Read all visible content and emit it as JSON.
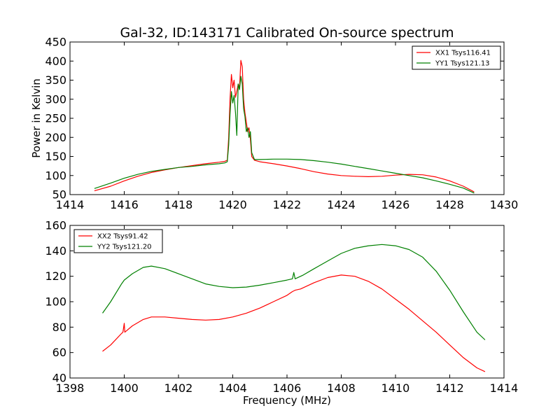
{
  "title": "Gal-32, ID:143171 Calibrated On-source spectrum",
  "ylabel": "Power in Kelvin",
  "xlabel": "Frequency (MHz)",
  "colors": {
    "xx": "#ff0000",
    "yy": "#008000",
    "axes": "#000000",
    "background": "#ffffff"
  },
  "chart_data": [
    {
      "type": "line",
      "xlim": [
        1414,
        1430
      ],
      "ylim": [
        50,
        450
      ],
      "xticks": [
        1414,
        1416,
        1418,
        1420,
        1422,
        1424,
        1426,
        1428,
        1430
      ],
      "yticks": [
        50,
        100,
        150,
        200,
        250,
        300,
        350,
        400,
        450
      ],
      "legend_position": "top-right",
      "series": [
        {
          "name": "XX1 Tsys116.41",
          "color": "#ff0000",
          "points": [
            [
              1414.9,
              60
            ],
            [
              1415.5,
              72
            ],
            [
              1416,
              86
            ],
            [
              1416.5,
              98
            ],
            [
              1417,
              108
            ],
            [
              1417.5,
              115
            ],
            [
              1418,
              121
            ],
            [
              1418.5,
              126
            ],
            [
              1419,
              131
            ],
            [
              1419.5,
              135
            ],
            [
              1419.7,
              137
            ],
            [
              1419.8,
              140
            ],
            [
              1419.85,
              200
            ],
            [
              1419.9,
              300
            ],
            [
              1419.95,
              365
            ],
            [
              1420.0,
              330
            ],
            [
              1420.05,
              350
            ],
            [
              1420.1,
              305
            ],
            [
              1420.15,
              320
            ],
            [
              1420.2,
              340
            ],
            [
              1420.25,
              330
            ],
            [
              1420.3,
              402
            ],
            [
              1420.35,
              385
            ],
            [
              1420.4,
              300
            ],
            [
              1420.45,
              265
            ],
            [
              1420.5,
              240
            ],
            [
              1420.55,
              215
            ],
            [
              1420.6,
              225
            ],
            [
              1420.65,
              195
            ],
            [
              1420.7,
              150
            ],
            [
              1420.8,
              140
            ],
            [
              1421,
              136
            ],
            [
              1421.5,
              131
            ],
            [
              1422,
              125
            ],
            [
              1422.5,
              118
            ],
            [
              1423,
              110
            ],
            [
              1423.5,
              104
            ],
            [
              1424,
              100
            ],
            [
              1424.5,
              98
            ],
            [
              1425,
              97
            ],
            [
              1425.5,
              98
            ],
            [
              1426,
              101
            ],
            [
              1426.5,
              103
            ],
            [
              1427,
              102
            ],
            [
              1427.5,
              96
            ],
            [
              1428,
              86
            ],
            [
              1428.5,
              72
            ],
            [
              1428.9,
              57
            ]
          ]
        },
        {
          "name": "YY1 Tsys121.13",
          "color": "#008000",
          "points": [
            [
              1414.9,
              66
            ],
            [
              1415.5,
              80
            ],
            [
              1416,
              93
            ],
            [
              1416.5,
              103
            ],
            [
              1417,
              111
            ],
            [
              1417.5,
              116
            ],
            [
              1418,
              121
            ],
            [
              1418.5,
              124
            ],
            [
              1419,
              128
            ],
            [
              1419.5,
              131
            ],
            [
              1419.7,
              133
            ],
            [
              1419.8,
              136
            ],
            [
              1419.85,
              180
            ],
            [
              1419.9,
              260
            ],
            [
              1419.95,
              320
            ],
            [
              1420.0,
              290
            ],
            [
              1420.05,
              310
            ],
            [
              1420.1,
              265
            ],
            [
              1420.15,
              205
            ],
            [
              1420.2,
              340
            ],
            [
              1420.25,
              325
            ],
            [
              1420.3,
              360
            ],
            [
              1420.35,
              340
            ],
            [
              1420.4,
              275
            ],
            [
              1420.45,
              255
            ],
            [
              1420.5,
              215
            ],
            [
              1420.55,
              225
            ],
            [
              1420.6,
              200
            ],
            [
              1420.65,
              215
            ],
            [
              1420.7,
              160
            ],
            [
              1420.8,
              142
            ],
            [
              1421,
              142
            ],
            [
              1421.5,
              143
            ],
            [
              1422,
              143
            ],
            [
              1422.5,
              142
            ],
            [
              1423,
              139
            ],
            [
              1423.5,
              135
            ],
            [
              1424,
              130
            ],
            [
              1424.5,
              124
            ],
            [
              1425,
              118
            ],
            [
              1425.5,
              112
            ],
            [
              1426,
              106
            ],
            [
              1426.5,
              100
            ],
            [
              1427,
              94
            ],
            [
              1427.5,
              86
            ],
            [
              1428,
              77
            ],
            [
              1428.5,
              67
            ],
            [
              1428.9,
              54
            ]
          ]
        }
      ]
    },
    {
      "type": "line",
      "xlim": [
        1398,
        1414
      ],
      "ylim": [
        40,
        160
      ],
      "xticks": [
        1398,
        1400,
        1402,
        1404,
        1406,
        1408,
        1410,
        1412,
        1414
      ],
      "yticks": [
        40,
        60,
        80,
        100,
        120,
        140,
        160
      ],
      "legend_position": "top-left",
      "series": [
        {
          "name": "XX2 Tsys91.42",
          "color": "#ff0000",
          "points": [
            [
              1399.2,
              61
            ],
            [
              1399.5,
              66
            ],
            [
              1399.9,
              75
            ],
            [
              1399.95,
              76
            ],
            [
              1400.0,
              83
            ],
            [
              1400.02,
              76
            ],
            [
              1400.3,
              81
            ],
            [
              1400.7,
              86
            ],
            [
              1401,
              88
            ],
            [
              1401.5,
              88
            ],
            [
              1402,
              87
            ],
            [
              1402.5,
              86
            ],
            [
              1403,
              85.5
            ],
            [
              1403.5,
              86
            ],
            [
              1404,
              88
            ],
            [
              1404.5,
              91
            ],
            [
              1405,
              95
            ],
            [
              1405.5,
              100
            ],
            [
              1406,
              105
            ],
            [
              1406.2,
              108
            ],
            [
              1406.3,
              109
            ],
            [
              1406.5,
              110
            ],
            [
              1407,
              115
            ],
            [
              1407.5,
              119
            ],
            [
              1408,
              121
            ],
            [
              1408.5,
              120
            ],
            [
              1409,
              116
            ],
            [
              1409.5,
              110
            ],
            [
              1410,
              102
            ],
            [
              1410.5,
              94
            ],
            [
              1411,
              85
            ],
            [
              1411.5,
              76
            ],
            [
              1412,
              66
            ],
            [
              1412.5,
              56
            ],
            [
              1413,
              48
            ],
            [
              1413.3,
              45
            ]
          ]
        },
        {
          "name": "YY2 Tsys121.20",
          "color": "#008000",
          "points": [
            [
              1399.2,
              91
            ],
            [
              1399.5,
              100
            ],
            [
              1399.9,
              114
            ],
            [
              1400,
              117
            ],
            [
              1400.3,
              122
            ],
            [
              1400.7,
              127
            ],
            [
              1401,
              128
            ],
            [
              1401.5,
              126
            ],
            [
              1402,
              122
            ],
            [
              1402.5,
              118
            ],
            [
              1403,
              114
            ],
            [
              1403.5,
              112
            ],
            [
              1404,
              111
            ],
            [
              1404.5,
              111.5
            ],
            [
              1405,
              113
            ],
            [
              1405.5,
              115
            ],
            [
              1406,
              117
            ],
            [
              1406.2,
              118
            ],
            [
              1406.25,
              123
            ],
            [
              1406.3,
              118
            ],
            [
              1406.6,
              121
            ],
            [
              1407,
              126
            ],
            [
              1407.5,
              132
            ],
            [
              1408,
              138
            ],
            [
              1408.5,
              142
            ],
            [
              1409,
              144
            ],
            [
              1409.5,
              145
            ],
            [
              1410,
              144
            ],
            [
              1410.5,
              141
            ],
            [
              1411,
              135
            ],
            [
              1411.5,
              124
            ],
            [
              1412,
              109
            ],
            [
              1412.5,
              92
            ],
            [
              1413,
              76
            ],
            [
              1413.3,
              70
            ]
          ]
        }
      ]
    }
  ]
}
